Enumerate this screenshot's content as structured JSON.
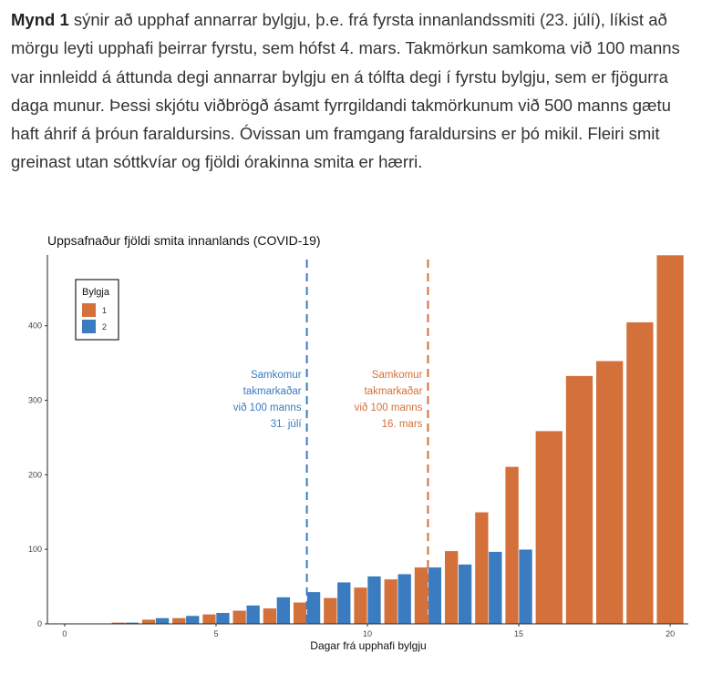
{
  "document": {
    "paragraph": {
      "bold": "Mynd 1",
      "text": " sýnir að upphaf annarrar bylgju, þ.e. frá fyrsta innanlandssmiti (23. júlí), líkist að mörgu leyti upphafi þeirrar fyrstu, sem hófst 4. mars. Takmörkun samkoma við 100 manns var innleidd á áttunda degi annarrar bylgju en á tólfta degi í fyrstu bylgju, sem er fjögurra daga munur. Þessi skjótu viðbrögð ásamt fyrrgildandi takmörkunum við 500 manns gætu haft áhrif á þróun faraldursins.  Óvissan um framgang faraldursins er þó mikil. Fleiri smit greinast utan sóttkvíar og fjöldi órakinna smita er hærri."
    }
  },
  "chart_data": {
    "type": "bar",
    "title": "Uppsafnaður fjöldi smita innanlands (COVID-19)",
    "x_label": "Dagar frá upphafi bylgju",
    "x": [
      2,
      3,
      4,
      5,
      6,
      7,
      8,
      9,
      10,
      11,
      12,
      13,
      14,
      15,
      16,
      17,
      18,
      19,
      20
    ],
    "series": [
      {
        "name": "1",
        "color": "#d4703a",
        "values": [
          2,
          6,
          8,
          13,
          18,
          21,
          29,
          35,
          49,
          60,
          76,
          98,
          150,
          211,
          259,
          333,
          353,
          405,
          495
        ]
      },
      {
        "name": "2",
        "color": "#3b7bbf",
        "values": [
          2,
          8,
          11,
          15,
          25,
          36,
          43,
          56,
          64,
          67,
          76,
          80,
          97,
          100,
          null,
          null,
          null,
          null,
          null
        ]
      }
    ],
    "legend_title": "Bylgja",
    "legend_position": "top-left",
    "xlim": [
      -0.57,
      20.6
    ],
    "xticks": [
      0,
      5,
      10,
      15,
      20
    ],
    "ylim": [
      0,
      495
    ],
    "yticks": [
      0,
      100,
      200,
      300,
      400
    ],
    "annotations": [
      {
        "x": 8,
        "color": "#3b7bbf",
        "lines": [
          "Samkomur",
          "takmarkaðar",
          "við 100 manns",
          "31. júlí"
        ]
      },
      {
        "x": 12,
        "color": "#d4703a",
        "lines": [
          "Samkomur",
          "takmarkaðar",
          "við 100 manns",
          "16. mars"
        ]
      }
    ]
  }
}
